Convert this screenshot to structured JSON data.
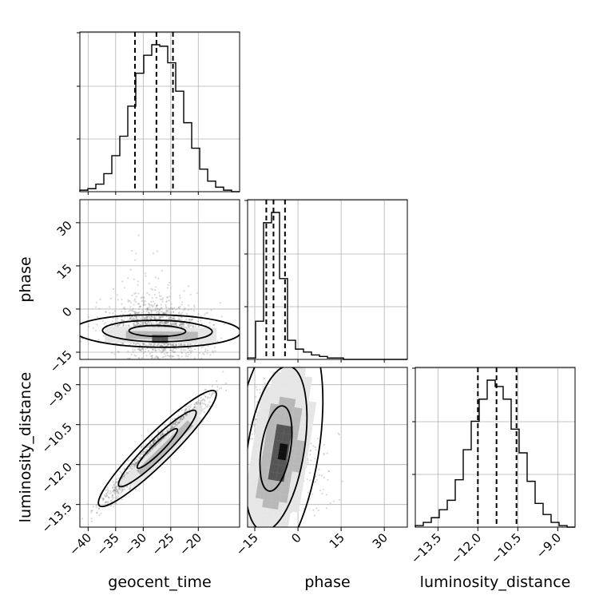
{
  "chart_data": {
    "type": "corner",
    "params": [
      "geocent_time",
      "phase",
      "luminosity_distance"
    ],
    "axis_labels": {
      "geocent_time": "geocent_time",
      "phase": "phase",
      "luminosity_distance": "luminosity_distance"
    },
    "ranges": {
      "geocent_time": [
        -41.5,
        -12.5
      ],
      "phase": [
        -17.5,
        38
      ],
      "luminosity_distance": [
        -14.35,
        -8.35
      ]
    },
    "ticks": {
      "geocent_time": [
        -40,
        -35,
        -30,
        -25,
        -20
      ],
      "phase": [
        -15,
        0,
        15,
        30
      ],
      "luminosity_distance": [
        -13.5,
        -12.0,
        -10.5,
        -9.0
      ]
    },
    "tick_labels": {
      "geocent_time": [
        "−40",
        "−35",
        "−30",
        "−25",
        "−20"
      ],
      "phase": [
        "−15",
        "0",
        "15",
        "30"
      ],
      "luminosity_distance": [
        "−13.5",
        "−12.0",
        "−10.5",
        "−9.0"
      ]
    },
    "histograms": {
      "geocent_time": {
        "bin_edges": [
          -41.5,
          -40.05,
          -38.6,
          -37.15,
          -35.7,
          -34.25,
          -32.8,
          -31.35,
          -29.9,
          -28.45,
          -27.0,
          -25.55,
          -24.1,
          -22.65,
          -21.2,
          -19.75,
          -18.3,
          -16.85,
          -15.4,
          -13.95,
          -12.5
        ],
        "counts": [
          0.01,
          0.02,
          0.05,
          0.12,
          0.24,
          0.37,
          0.57,
          0.79,
          0.91,
          0.98,
          0.97,
          0.86,
          0.67,
          0.46,
          0.29,
          0.15,
          0.07,
          0.03,
          0.01,
          0.0
        ],
        "quantiles": [
          -31.5,
          -27.6,
          -24.6
        ]
      },
      "phase": {
        "bin_edges": [
          -17.5,
          -14.72,
          -11.95,
          -9.18,
          -6.4,
          -3.62,
          -0.85,
          1.92,
          4.7,
          7.48,
          10.25,
          13.02,
          15.8,
          18.58,
          21.35,
          24.12,
          26.9,
          29.68,
          32.45,
          35.22,
          38.0
        ],
        "counts": [
          0.01,
          0.26,
          0.93,
          1.0,
          0.55,
          0.13,
          0.07,
          0.05,
          0.03,
          0.02,
          0.01,
          0.01,
          0.0,
          0.0,
          0.0,
          0.0,
          0.0,
          0.0,
          0.0,
          0.0
        ],
        "quantiles": [
          -11.0,
          -8.5,
          -4.5
        ]
      },
      "luminosity_distance": {
        "bin_edges": [
          -14.35,
          -14.05,
          -13.75,
          -13.45,
          -13.15,
          -12.85,
          -12.55,
          -12.25,
          -11.95,
          -11.65,
          -11.35,
          -11.05,
          -10.75,
          -10.45,
          -10.15,
          -9.85,
          -9.55,
          -9.25,
          -8.95,
          -8.65,
          -8.35
        ],
        "counts": [
          0.01,
          0.03,
          0.06,
          0.11,
          0.17,
          0.3,
          0.49,
          0.67,
          0.81,
          0.93,
          0.89,
          0.81,
          0.62,
          0.47,
          0.29,
          0.15,
          0.08,
          0.03,
          0.01,
          0.0
        ],
        "quantiles": [
          -12.0,
          -11.3,
          -10.55
        ]
      }
    },
    "correlations": {
      "geocent_time|phase": -0.15,
      "geocent_time|luminosity_distance": 0.97,
      "phase|luminosity_distance": -0.3
    },
    "grid": true,
    "style": {
      "scatter_color": "#808080",
      "line_color": "#000000",
      "quantile_dash": "6,4"
    }
  }
}
